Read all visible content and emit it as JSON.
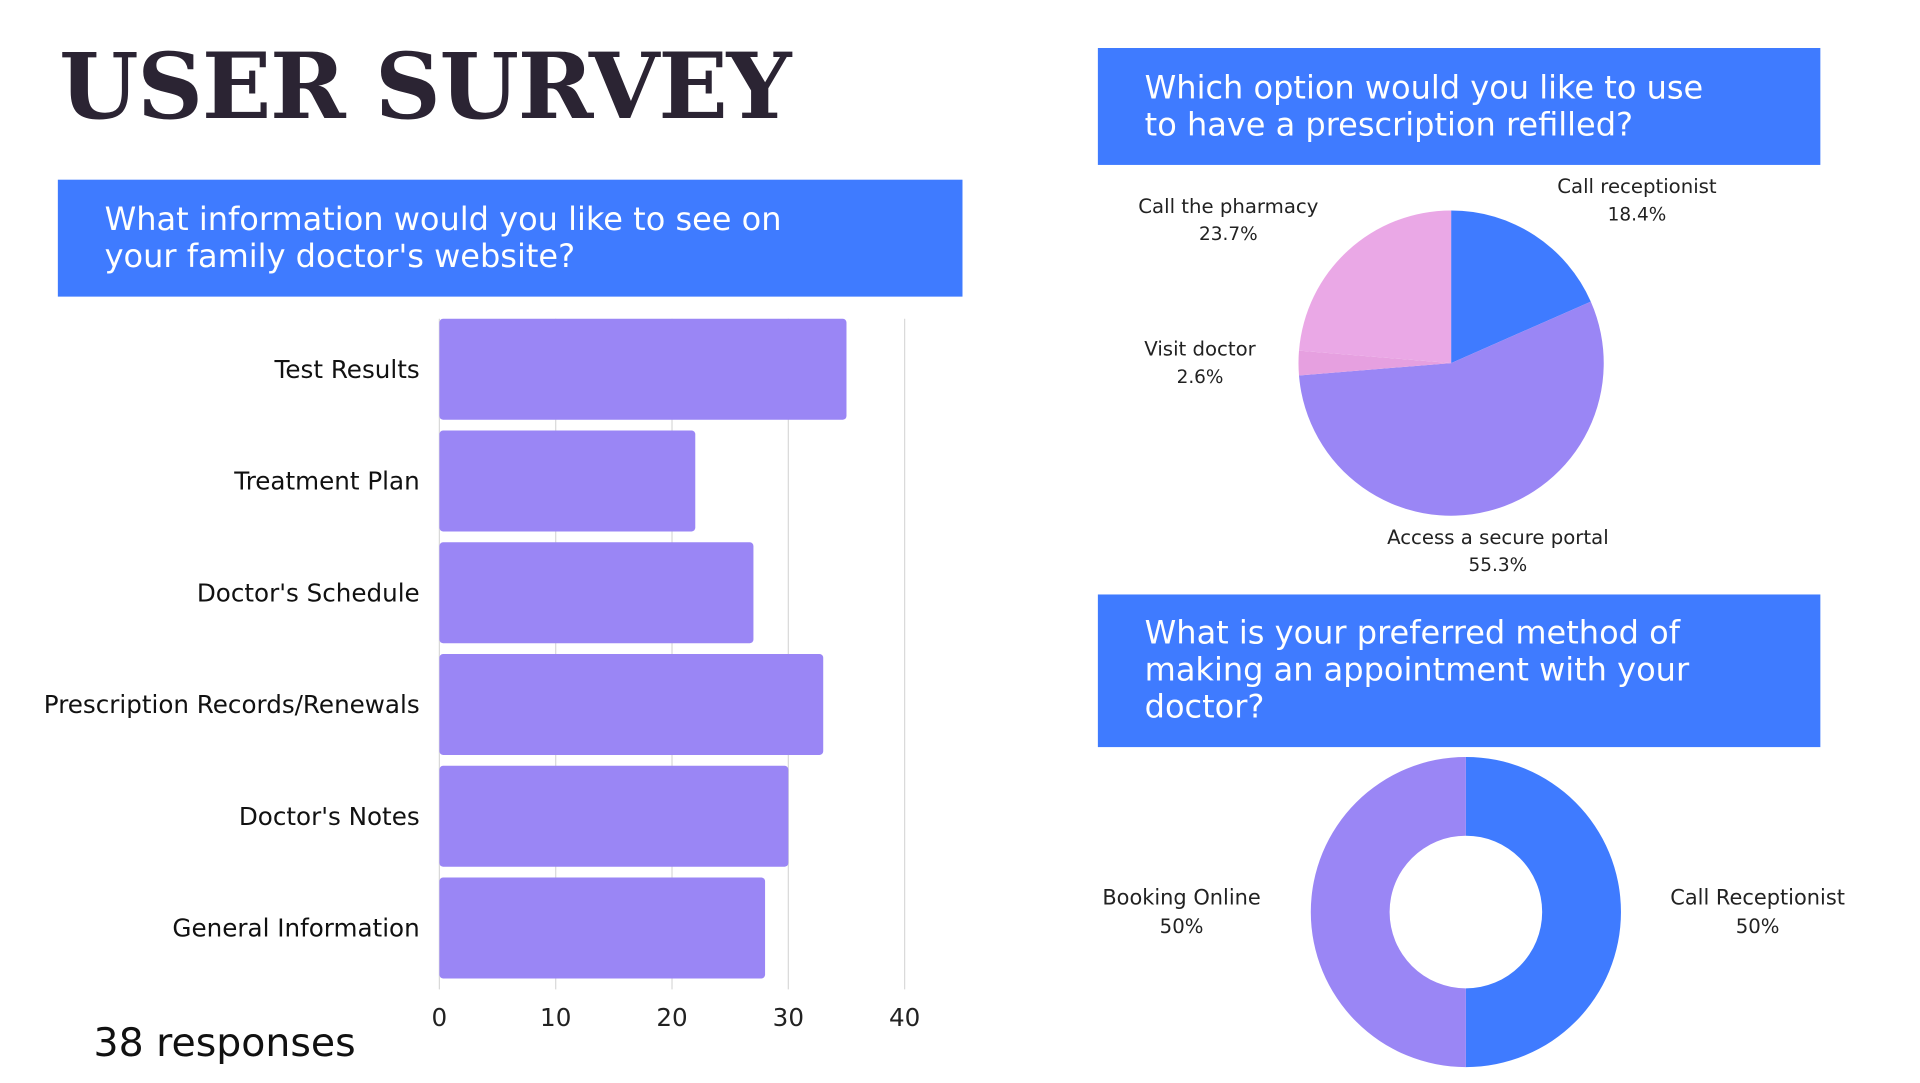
{
  "title": "USER SURVEY",
  "responses_note": "38 responses",
  "colors": {
    "header_bg": "#3f7bff",
    "bar": "#9a86f5",
    "blue": "#3f7bff",
    "purple": "#9a86f5",
    "pink": "#ebaae6",
    "title": "#2b2433"
  },
  "chart_data": [
    {
      "type": "bar",
      "orientation": "horizontal",
      "title": [
        "What information would you like to see on",
        "your family doctor's website?"
      ],
      "categories": [
        "Test Results",
        "Treatment Plan",
        "Doctor's Schedule",
        "Prescription Records/Renewals",
        "Doctor's Notes",
        "General Information"
      ],
      "values": [
        35,
        22,
        27,
        33,
        30,
        28
      ],
      "xlim": [
        0,
        40
      ],
      "xticks": [
        0,
        10,
        20,
        30,
        40
      ],
      "grid": true
    },
    {
      "type": "pie",
      "title": [
        "Which option would you like to use",
        "to have a prescription refilled?"
      ],
      "slices": [
        {
          "label": "Call receptionist",
          "value": 18.4,
          "pct_label": "18.4%",
          "color": "#3f7bff"
        },
        {
          "label": "Access a secure portal",
          "value": 55.3,
          "pct_label": "55.3%",
          "color": "#9a86f5"
        },
        {
          "label": "Visit doctor",
          "value": 2.6,
          "pct_label": "2.6%",
          "color": "#e6a0e0"
        },
        {
          "label": "Call the pharmacy",
          "value": 23.7,
          "pct_label": "23.7%",
          "color": "#eaa8e6"
        }
      ]
    },
    {
      "type": "pie",
      "donut": true,
      "title": [
        "What is your preferred method of",
        "making an appointment with your",
        "doctor?"
      ],
      "slices": [
        {
          "label": "Call Receptionist",
          "value": 50,
          "pct_label": "50%",
          "color": "#3f7bff"
        },
        {
          "label": "Booking Online",
          "value": 50,
          "pct_label": "50%",
          "color": "#9a86f5"
        }
      ]
    }
  ]
}
